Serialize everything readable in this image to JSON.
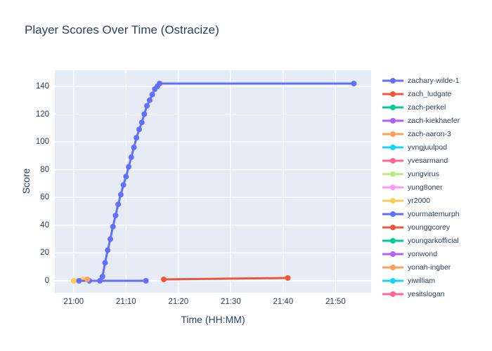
{
  "title": "Player Scores Over Time (Ostracize)",
  "colors": {
    "title_text": "#2a3f5f",
    "tick_text": "#2a3f5f",
    "plot_background": "#e5ecf6",
    "gridline": "#ffffff",
    "paper_background": "#ffffff"
  },
  "chart_data": {
    "type": "line",
    "title": "Player Scores Over Time (Ostracize)",
    "xlabel": "Time (HH:MM)",
    "ylabel": "Score",
    "grid": true,
    "legend_position": "right",
    "x_axis": {
      "tick_labels": [
        "21:00",
        "21:10",
        "21:20",
        "21:30",
        "21:40",
        "21:50"
      ],
      "tick_minutes_after_21_00": [
        0,
        10,
        20,
        30,
        40,
        50
      ],
      "range_minutes_after_21_00": [
        -3.6,
        56.8
      ]
    },
    "y_axis": {
      "tick_labels": [
        "0",
        "20",
        "40",
        "60",
        "80",
        "100",
        "120",
        "140"
      ],
      "ticks": [
        0,
        20,
        40,
        60,
        80,
        100,
        120,
        140
      ],
      "range": [
        -8.6,
        151.6
      ]
    },
    "series": [
      {
        "name": "zachary-wilde-1",
        "color": "#636EFA",
        "x_minutes_after_21_00": [
          3,
          5,
          5.5,
          6,
          6.5,
          7,
          7.5,
          8,
          8.5,
          9,
          9.5,
          10,
          10.5,
          11,
          11.5,
          12,
          12.5,
          13,
          13.5,
          14,
          14.5,
          15,
          15.5,
          16,
          16.4,
          53.5
        ],
        "scores": [
          0,
          0,
          3,
          13,
          22,
          30,
          39,
          47,
          55,
          62,
          69,
          75,
          82,
          89,
          96,
          103,
          109,
          114,
          120,
          126,
          130,
          134,
          138,
          140,
          142,
          142
        ]
      },
      {
        "name": "zach_ludgate",
        "color": "#EF553B",
        "x_minutes_after_21_00": [
          17.2,
          40.9
        ],
        "scores": [
          1,
          2
        ]
      },
      {
        "name": "zach-perkel",
        "color": "#00CC96",
        "x_minutes_after_21_00": [],
        "scores": []
      },
      {
        "name": "zach-kiekhaefer",
        "color": "#AB63FA",
        "x_minutes_after_21_00": [],
        "scores": []
      },
      {
        "name": "zach-aaron-3",
        "color": "#FFA15A",
        "x_minutes_after_21_00": [],
        "scores": []
      },
      {
        "name": "yvngjuulpod",
        "color": "#19D3F3",
        "x_minutes_after_21_00": [],
        "scores": []
      },
      {
        "name": "yvesarmand",
        "color": "#FF6692",
        "x_minutes_after_21_00": [],
        "scores": []
      },
      {
        "name": "yungvirus",
        "color": "#B6E880",
        "x_minutes_after_21_00": [],
        "scores": []
      },
      {
        "name": "yung8oner",
        "color": "#FF97FF",
        "x_minutes_after_21_00": [],
        "scores": []
      },
      {
        "name": "yr2000",
        "color": "#FECB52",
        "x_minutes_after_21_00": [
          0,
          1.7
        ],
        "scores": [
          0,
          1
        ]
      },
      {
        "name": "yourmatemurph",
        "color": "#636EFA",
        "x_minutes_after_21_00": [
          1,
          13.8
        ],
        "scores": [
          0,
          0
        ]
      },
      {
        "name": "younggcorey",
        "color": "#EF553B",
        "x_minutes_after_21_00": [],
        "scores": []
      },
      {
        "name": "youngarkofficial",
        "color": "#00CC96",
        "x_minutes_after_21_00": [],
        "scores": []
      },
      {
        "name": "yonwond",
        "color": "#AB63FA",
        "x_minutes_after_21_00": [],
        "scores": []
      },
      {
        "name": "yonah-ingber",
        "color": "#FFA15A",
        "x_minutes_after_21_00": [
          2.6
        ],
        "scores": [
          1
        ]
      },
      {
        "name": "yiwilliam",
        "color": "#19D3F3",
        "x_minutes_after_21_00": [],
        "scores": []
      },
      {
        "name": "yesitslogan",
        "color": "#FF6692",
        "x_minutes_after_21_00": [],
        "scores": []
      }
    ]
  }
}
